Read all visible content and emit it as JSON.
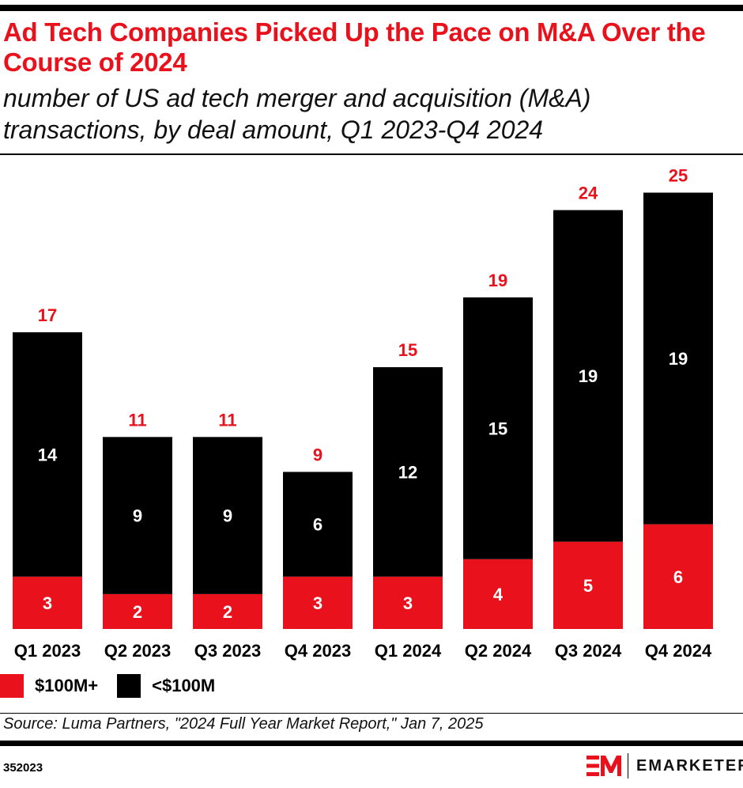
{
  "title": "Ad Tech Companies Picked Up the Pace on M&A Over the Course of 2024",
  "subtitle": "number of US ad tech merger and acquisition (M&A) transactions, by deal amount, Q1 2023-Q4 2024",
  "source": "Source: Luma Partners, \"2024 Full Year Market Report,\" Jan 7, 2025",
  "chart_id": "352023",
  "logo": "EMARKETER",
  "colors": {
    "accent": "#e8111c",
    "dark": "#000000"
  },
  "chart_data": {
    "type": "bar",
    "stacked": true,
    "categories": [
      "Q1 2023",
      "Q2 2023",
      "Q3 2023",
      "Q4 2023",
      "Q1 2024",
      "Q2 2024",
      "Q3 2024",
      "Q4 2024"
    ],
    "series": [
      {
        "name": "$100M+",
        "color": "#e8111c",
        "values": [
          3,
          2,
          2,
          3,
          3,
          4,
          5,
          6
        ]
      },
      {
        "name": "<$100M",
        "color": "#000000",
        "values": [
          14,
          9,
          9,
          6,
          12,
          15,
          19,
          19
        ]
      }
    ],
    "totals": [
      17,
      11,
      11,
      9,
      15,
      19,
      24,
      25
    ],
    "legend_position": "bottom-left",
    "grid": false
  }
}
